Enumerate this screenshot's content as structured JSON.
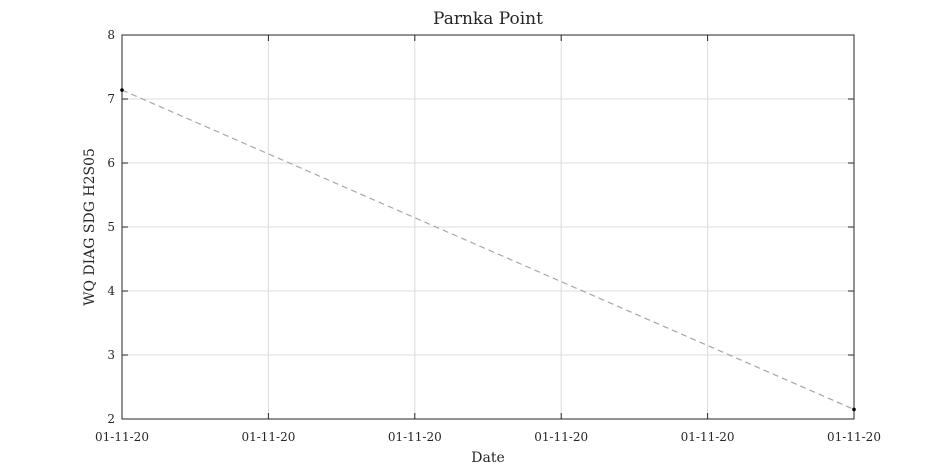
{
  "chart_data": {
    "type": "line",
    "title": "Parnka Point",
    "xlabel": "Date",
    "ylabel": "WQ DIAG SDG H2S05",
    "x": [
      0,
      5
    ],
    "x_tick_values": [
      0,
      1,
      2,
      3,
      4,
      5
    ],
    "x_tick_labels": [
      "01-11-20",
      "01-11-20",
      "01-11-20",
      "01-11-20",
      "01-11-20",
      "01-11-20"
    ],
    "xlim": [
      0,
      5
    ],
    "ylim": [
      2,
      8
    ],
    "y_ticks": [
      2,
      3,
      4,
      5,
      6,
      7,
      8
    ],
    "grid": true,
    "legend": "none",
    "series": [
      {
        "values": [
          7.14,
          2.15
        ],
        "line_color": "#a6a6a6",
        "marker_color": "#000000",
        "line_style": "dashed"
      }
    ]
  }
}
